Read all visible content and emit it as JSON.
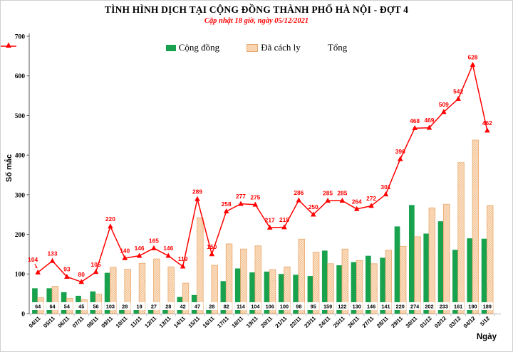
{
  "header": {
    "title": "TÌNH HÌNH DỊCH TẠI CỘNG ĐỒNG THÀNH PHỐ HÀ NỘI - ĐỢT 4",
    "subtitle": "Cập nhật 18 giờ, ngày 05/12/2021"
  },
  "chart_data": {
    "type": "bar",
    "overlay": "line",
    "title": "TÌNH HÌNH DỊCH TẠI CỘNG ĐỒNG THÀNH PHỐ HÀ NỘI - ĐỢT 4",
    "subtitle": "Cập nhật 18 giờ, ngày 05/12/2021",
    "xlabel": "Ngày",
    "ylabel": "Số mắc",
    "ylim": [
      0,
      700
    ],
    "yticks": [
      0,
      100,
      200,
      300,
      400,
      500,
      600,
      700
    ],
    "grid": false,
    "legend_position": "top",
    "categories": [
      "04/11",
      "05/11",
      "06/11",
      "07/11",
      "08/11",
      "09/11",
      "10/11",
      "11/11",
      "12/11",
      "13/11",
      "14/11",
      "15/11",
      "16/11",
      "17/11",
      "18/11",
      "19/11",
      "20/11",
      "21/11",
      "22/11",
      "23/11",
      "24/11",
      "25/11",
      "26/11",
      "27/11",
      "28/11",
      "29/11",
      "30/11",
      "01/12",
      "02/12",
      "03/12",
      "04/12",
      "5/12"
    ],
    "series": [
      {
        "name": "Cộng đồng",
        "type": "bar",
        "color": "#18A24D",
        "values": [
          64,
          64,
          54,
          45,
          56,
          103,
          28,
          19,
          27,
          28,
          42,
          47,
          28,
          82,
          114,
          104,
          106,
          100,
          98,
          95,
          159,
          122,
          130,
          146,
          141,
          220,
          274,
          202,
          233,
          161,
          190,
          189
        ],
        "value_labels": "at-base-in-white-boxes"
      },
      {
        "name": "Đã cách ly",
        "type": "bar",
        "color": "#FCEBD5",
        "pattern": "checker",
        "values": [
          40,
          69,
          39,
          35,
          49,
          117,
          112,
          127,
          138,
          118,
          77,
          242,
          122,
          176,
          163,
          171,
          111,
          118,
          188,
          155,
          126,
          163,
          134,
          126,
          160,
          170,
          194,
          267,
          276,
          381,
          438,
          273
        ]
      },
      {
        "name": "Tổng",
        "type": "line",
        "color": "#FF0000",
        "marker": "triangle",
        "values": [
          104,
          133,
          93,
          80,
          105,
          220,
          140,
          146,
          165,
          146,
          119,
          289,
          150,
          258,
          277,
          275,
          217,
          218,
          286,
          250,
          285,
          285,
          264,
          272,
          301,
          390,
          468,
          469,
          509,
          542,
          628,
          462
        ],
        "value_labels": "above-points"
      }
    ]
  },
  "colors": {
    "green": "#18A24D",
    "tan_bg": "#FCEBD5",
    "tan_dot": "#F3BD8D",
    "tan_border": "#E9A86D",
    "red": "#FF0000",
    "axis_dark": "#555555",
    "axis_light": "#b5b5b5",
    "text": "#000000"
  }
}
